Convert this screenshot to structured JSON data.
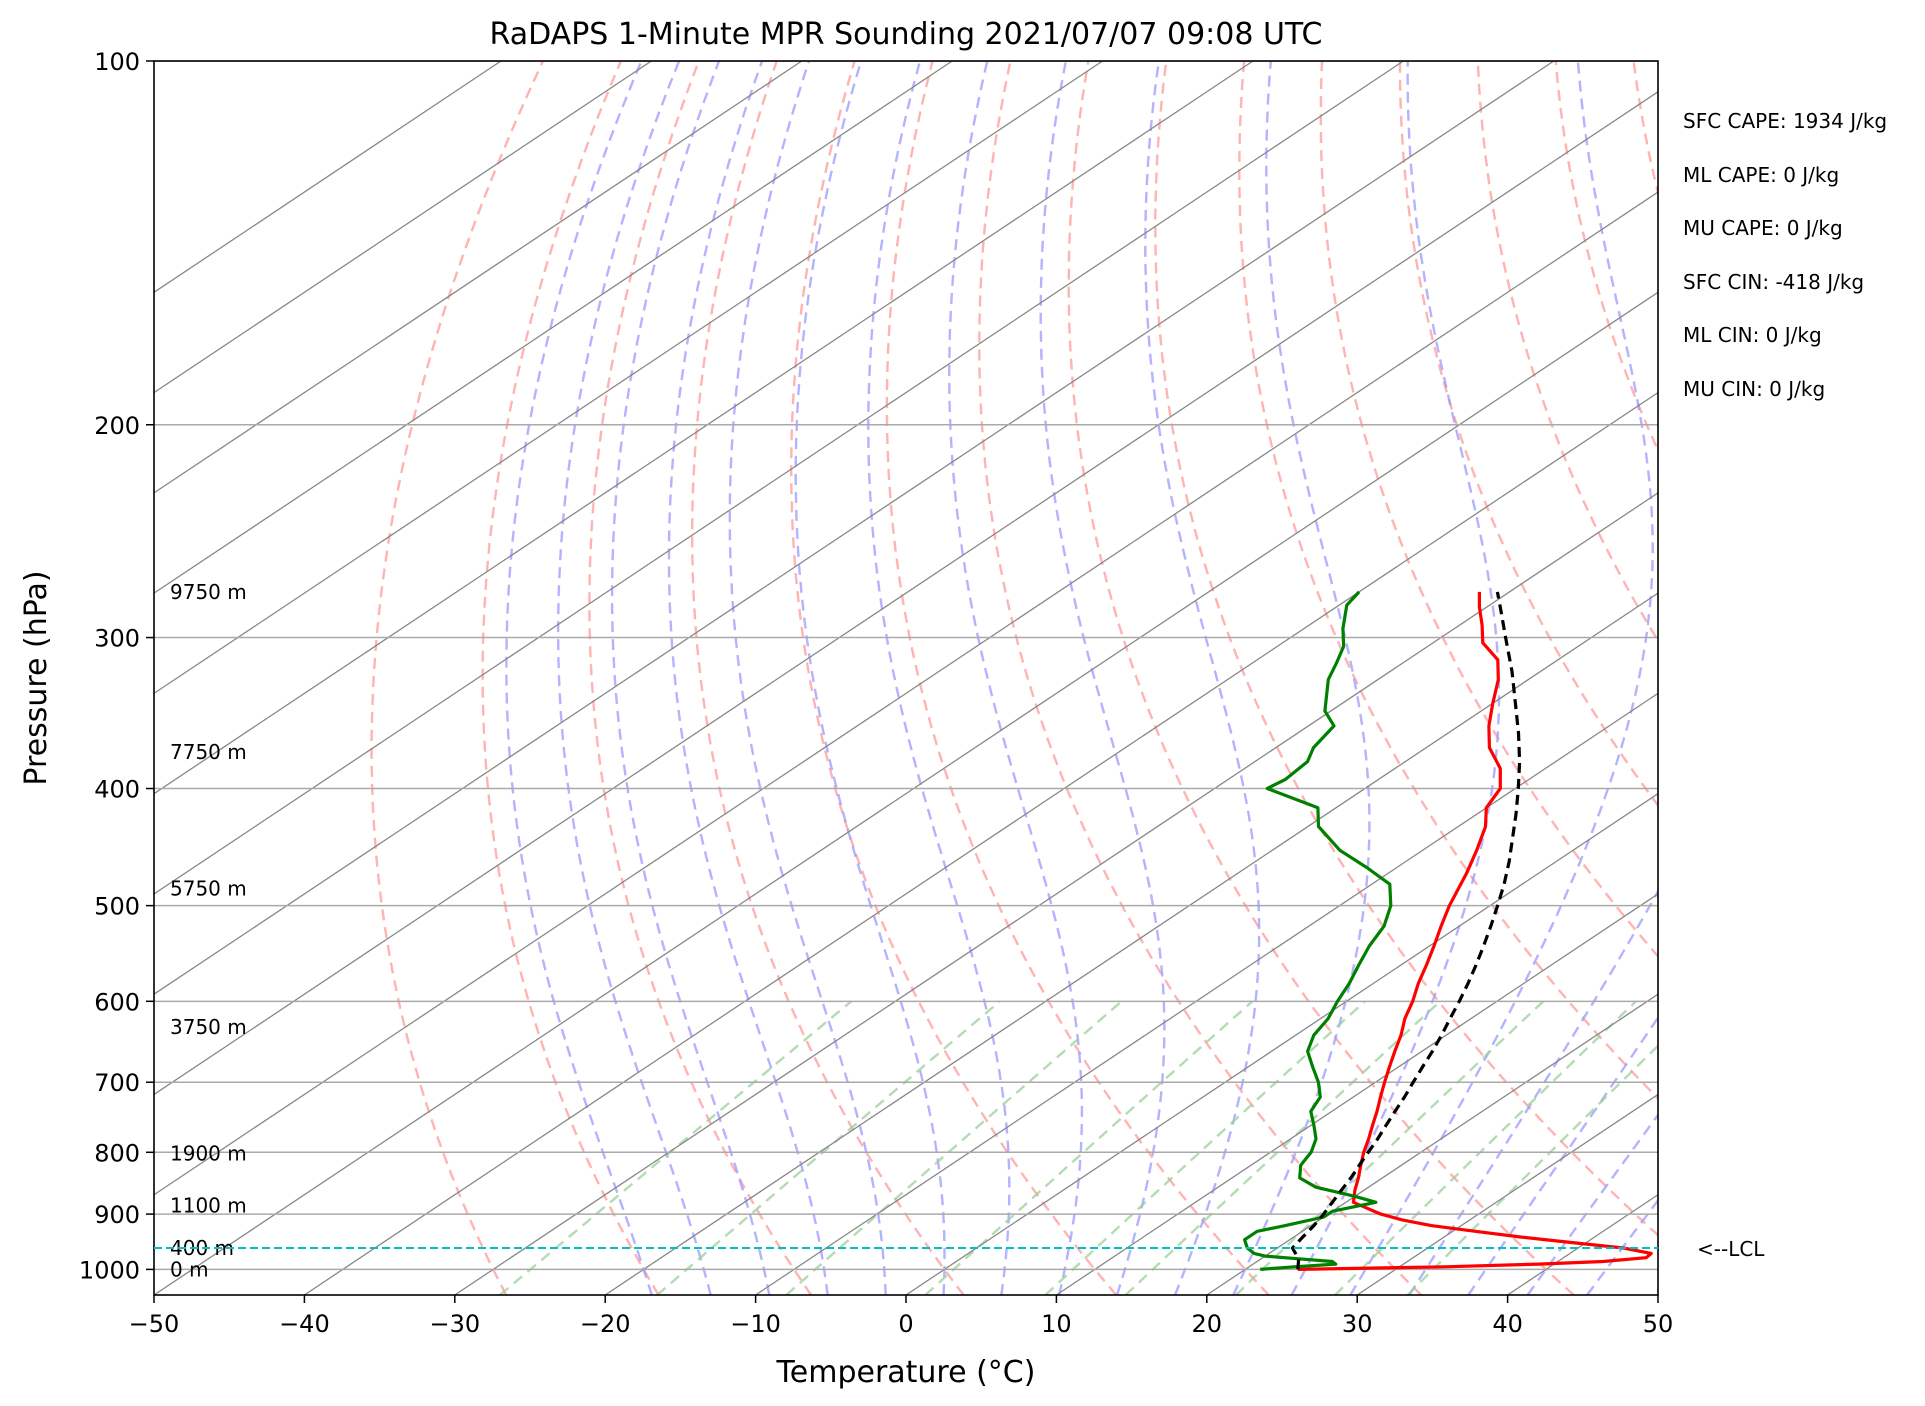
{
  "chart_data": {
    "type": "line",
    "title": "RaDAPS 1-Minute MPR Sounding 2021/07/07 09:08 UTC",
    "xlabel": "Temperature (°C)",
    "ylabel": "Pressure (hPa)",
    "xlim": [
      -50,
      50
    ],
    "ylim": [
      1050,
      100
    ],
    "y_scale": "log",
    "skew": "skew-T",
    "grid": true,
    "x_ticks": [
      "−50",
      "−40",
      "−30",
      "−20",
      "−10",
      "0",
      "10",
      "20",
      "30",
      "40",
      "50"
    ],
    "x_tick_values": [
      -50,
      -40,
      -30,
      -20,
      -10,
      0,
      10,
      20,
      30,
      40,
      50
    ],
    "y_ticks": [
      "100",
      "200",
      "300",
      "400",
      "500",
      "600",
      "700",
      "800",
      "900",
      "1000"
    ],
    "y_tick_values": [
      100,
      200,
      300,
      400,
      500,
      600,
      700,
      800,
      900,
      1000
    ],
    "height_labels": [
      {
        "text": "9750 m",
        "p": 275
      },
      {
        "text": "7750 m",
        "p": 373
      },
      {
        "text": "5750 m",
        "p": 484
      },
      {
        "text": "3750 m",
        "p": 630
      },
      {
        "text": "1900 m",
        "p": 802
      },
      {
        "text": "1100 m",
        "p": 885
      },
      {
        "text": "400 m",
        "p": 960
      },
      {
        "text": "0 m",
        "p": 1000
      }
    ],
    "series": [
      {
        "role": "temperature",
        "color": "#ff0000",
        "points": [
          {
            "p": 1000,
            "t": 23.5
          },
          {
            "p": 995,
            "t": 33
          },
          {
            "p": 990,
            "t": 39
          },
          {
            "p": 985,
            "t": 43
          },
          {
            "p": 978,
            "t": 45.5
          },
          {
            "p": 970,
            "t": 45.4
          },
          {
            "p": 960,
            "t": 43
          },
          {
            "p": 950,
            "t": 39
          },
          {
            "p": 940,
            "t": 35
          },
          {
            "p": 930,
            "t": 31.5
          },
          {
            "p": 920,
            "t": 28
          },
          {
            "p": 910,
            "t": 25.5
          },
          {
            "p": 900,
            "t": 23.5
          },
          {
            "p": 890,
            "t": 22
          },
          {
            "p": 880,
            "t": 20.5
          },
          {
            "p": 860,
            "t": 19.4
          },
          {
            "p": 840,
            "t": 18.4
          },
          {
            "p": 820,
            "t": 17.3
          },
          {
            "p": 800,
            "t": 16.2
          },
          {
            "p": 780,
            "t": 15.2
          },
          {
            "p": 760,
            "t": 14.1
          },
          {
            "p": 740,
            "t": 13.0
          },
          {
            "p": 720,
            "t": 11.8
          },
          {
            "p": 700,
            "t": 10.6
          },
          {
            "p": 680,
            "t": 9.4
          },
          {
            "p": 660,
            "t": 8.2
          },
          {
            "p": 640,
            "t": 7.0
          },
          {
            "p": 620,
            "t": 5.6
          },
          {
            "p": 600,
            "t": 4.4
          },
          {
            "p": 580,
            "t": 3.0
          },
          {
            "p": 560,
            "t": 1.7
          },
          {
            "p": 540,
            "t": 0.3
          },
          {
            "p": 520,
            "t": -1.2
          },
          {
            "p": 500,
            "t": -2.7
          },
          {
            "p": 470,
            "t": -4.8
          },
          {
            "p": 450,
            "t": -6.4
          },
          {
            "p": 430,
            "t": -8.2
          },
          {
            "p": 415,
            "t": -10.0
          },
          {
            "p": 400,
            "t": -11.0
          },
          {
            "p": 385,
            "t": -13.0
          },
          {
            "p": 370,
            "t": -15.8
          },
          {
            "p": 355,
            "t": -18.0
          },
          {
            "p": 340,
            "t": -20.0
          },
          {
            "p": 325,
            "t": -22.0
          },
          {
            "p": 313,
            "t": -24.0
          },
          {
            "p": 303,
            "t": -26.7
          },
          {
            "p": 293,
            "t": -28.5
          },
          {
            "p": 283,
            "t": -30.5
          },
          {
            "p": 275,
            "t": -32.0
          }
        ]
      },
      {
        "role": "dewpoint",
        "color": "#008000",
        "points": [
          {
            "p": 1000,
            "t": 21.0
          },
          {
            "p": 995,
            "t": 23.0
          },
          {
            "p": 990,
            "t": 25.5
          },
          {
            "p": 985,
            "t": 25.0
          },
          {
            "p": 980,
            "t": 22.5
          },
          {
            "p": 975,
            "t": 20.0
          },
          {
            "p": 970,
            "t": 19.0
          },
          {
            "p": 960,
            "t": 18.0
          },
          {
            "p": 945,
            "t": 17.0
          },
          {
            "p": 930,
            "t": 17.0
          },
          {
            "p": 920,
            "t": 18.3
          },
          {
            "p": 905,
            "t": 20.0
          },
          {
            "p": 895,
            "t": 20.0
          },
          {
            "p": 880,
            "t": 22.0
          },
          {
            "p": 870,
            "t": 20.0
          },
          {
            "p": 855,
            "t": 16.5
          },
          {
            "p": 840,
            "t": 14.5
          },
          {
            "p": 820,
            "t": 13.3
          },
          {
            "p": 800,
            "t": 12.7
          },
          {
            "p": 780,
            "t": 11.7
          },
          {
            "p": 760,
            "t": 10.2
          },
          {
            "p": 740,
            "t": 8.6
          },
          {
            "p": 720,
            "t": 7.8
          },
          {
            "p": 700,
            "t": 6.2
          },
          {
            "p": 680,
            "t": 4.3
          },
          {
            "p": 660,
            "t": 2.4
          },
          {
            "p": 640,
            "t": 1.2
          },
          {
            "p": 620,
            "t": 0.5
          },
          {
            "p": 600,
            "t": -0.6
          },
          {
            "p": 580,
            "t": -1.6
          },
          {
            "p": 560,
            "t": -2.8
          },
          {
            "p": 540,
            "t": -4.0
          },
          {
            "p": 520,
            "t": -5.0
          },
          {
            "p": 500,
            "t": -6.6
          },
          {
            "p": 480,
            "t": -8.8
          },
          {
            "p": 465,
            "t": -12.0
          },
          {
            "p": 450,
            "t": -15.5
          },
          {
            "p": 430,
            "t": -19.3
          },
          {
            "p": 415,
            "t": -21.2
          },
          {
            "p": 400,
            "t": -26.5
          },
          {
            "p": 393,
            "t": -26.2
          },
          {
            "p": 380,
            "t": -26.5
          },
          {
            "p": 370,
            "t": -27.5
          },
          {
            "p": 355,
            "t": -28.3
          },
          {
            "p": 345,
            "t": -30.4
          },
          {
            "p": 325,
            "t": -33.3
          },
          {
            "p": 315,
            "t": -34.4
          },
          {
            "p": 305,
            "t": -35.6
          },
          {
            "p": 295,
            "t": -37.4
          },
          {
            "p": 282,
            "t": -39.5
          },
          {
            "p": 275,
            "t": -40.0
          }
        ]
      },
      {
        "role": "parcel",
        "color": "#000000",
        "dashed": true,
        "points": [
          {
            "p": 1000,
            "t": 23.5
          },
          {
            "p": 980,
            "t": 22.5
          },
          {
            "p": 960,
            "t": 21.0
          },
          {
            "p": 940,
            "t": 20.6
          },
          {
            "p": 920,
            "t": 20.2
          },
          {
            "p": 900,
            "t": 19.7
          },
          {
            "p": 880,
            "t": 19.1
          },
          {
            "p": 860,
            "t": 18.5
          },
          {
            "p": 840,
            "t": 17.9
          },
          {
            "p": 820,
            "t": 17.2
          },
          {
            "p": 800,
            "t": 16.5
          },
          {
            "p": 780,
            "t": 15.8
          },
          {
            "p": 760,
            "t": 15.0
          },
          {
            "p": 740,
            "t": 14.2
          },
          {
            "p": 720,
            "t": 13.4
          },
          {
            "p": 700,
            "t": 12.5
          },
          {
            "p": 680,
            "t": 11.6
          },
          {
            "p": 660,
            "t": 10.7
          },
          {
            "p": 640,
            "t": 9.7
          },
          {
            "p": 620,
            "t": 8.6
          },
          {
            "p": 600,
            "t": 7.5
          },
          {
            "p": 580,
            "t": 6.3
          },
          {
            "p": 560,
            "t": 5.0
          },
          {
            "p": 540,
            "t": 3.6
          },
          {
            "p": 520,
            "t": 2.1
          },
          {
            "p": 500,
            "t": 0.5
          },
          {
            "p": 480,
            "t": -1.2
          },
          {
            "p": 460,
            "t": -3.1
          },
          {
            "p": 440,
            "t": -5.2
          },
          {
            "p": 420,
            "t": -7.4
          },
          {
            "p": 400,
            "t": -9.8
          },
          {
            "p": 380,
            "t": -12.4
          },
          {
            "p": 360,
            "t": -15.3
          },
          {
            "p": 340,
            "t": -18.5
          },
          {
            "p": 320,
            "t": -21.9
          },
          {
            "p": 300,
            "t": -25.7
          },
          {
            "p": 285,
            "t": -28.7
          },
          {
            "p": 275,
            "t": -30.8
          }
        ]
      }
    ],
    "lcl": {
      "p": 960,
      "label": "<--LCL",
      "color": "#00c0c0"
    },
    "background_lines": {
      "isotherms_color": "#888888",
      "dry_adiabats_color": "#ff9a9a",
      "moist_adiabats_color": "#9a9aff",
      "mixing_ratio_color": "#9ad09a"
    },
    "annotations": [
      "SFC CAPE: 1934 J/kg",
      "ML CAPE: 0 J/kg",
      "MU CAPE: 0 J/kg",
      "SFC CIN: -418 J/kg",
      "ML CIN: 0 J/kg",
      "MU CIN: 0 J/kg"
    ]
  }
}
